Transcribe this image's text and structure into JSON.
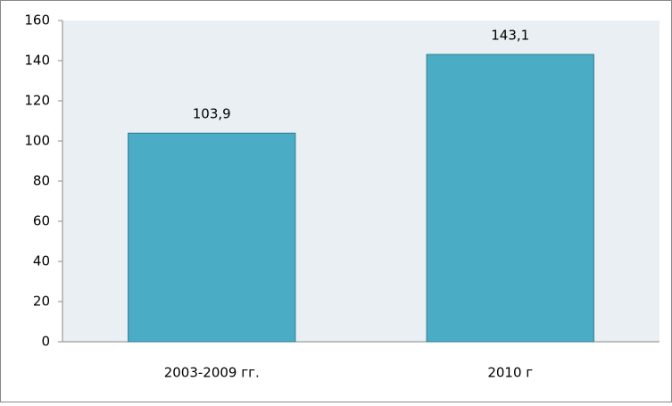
{
  "chart_data": {
    "type": "bar",
    "categories": [
      "2003-2009 гг.",
      "2010 г"
    ],
    "values": [
      103.9,
      143.1
    ],
    "value_labels": [
      "103,9",
      "143,1"
    ],
    "color": "#4bacc6",
    "ylim": [
      0,
      160
    ],
    "yticks": [
      0,
      20,
      40,
      60,
      80,
      100,
      120,
      140,
      160
    ],
    "grid": false
  }
}
